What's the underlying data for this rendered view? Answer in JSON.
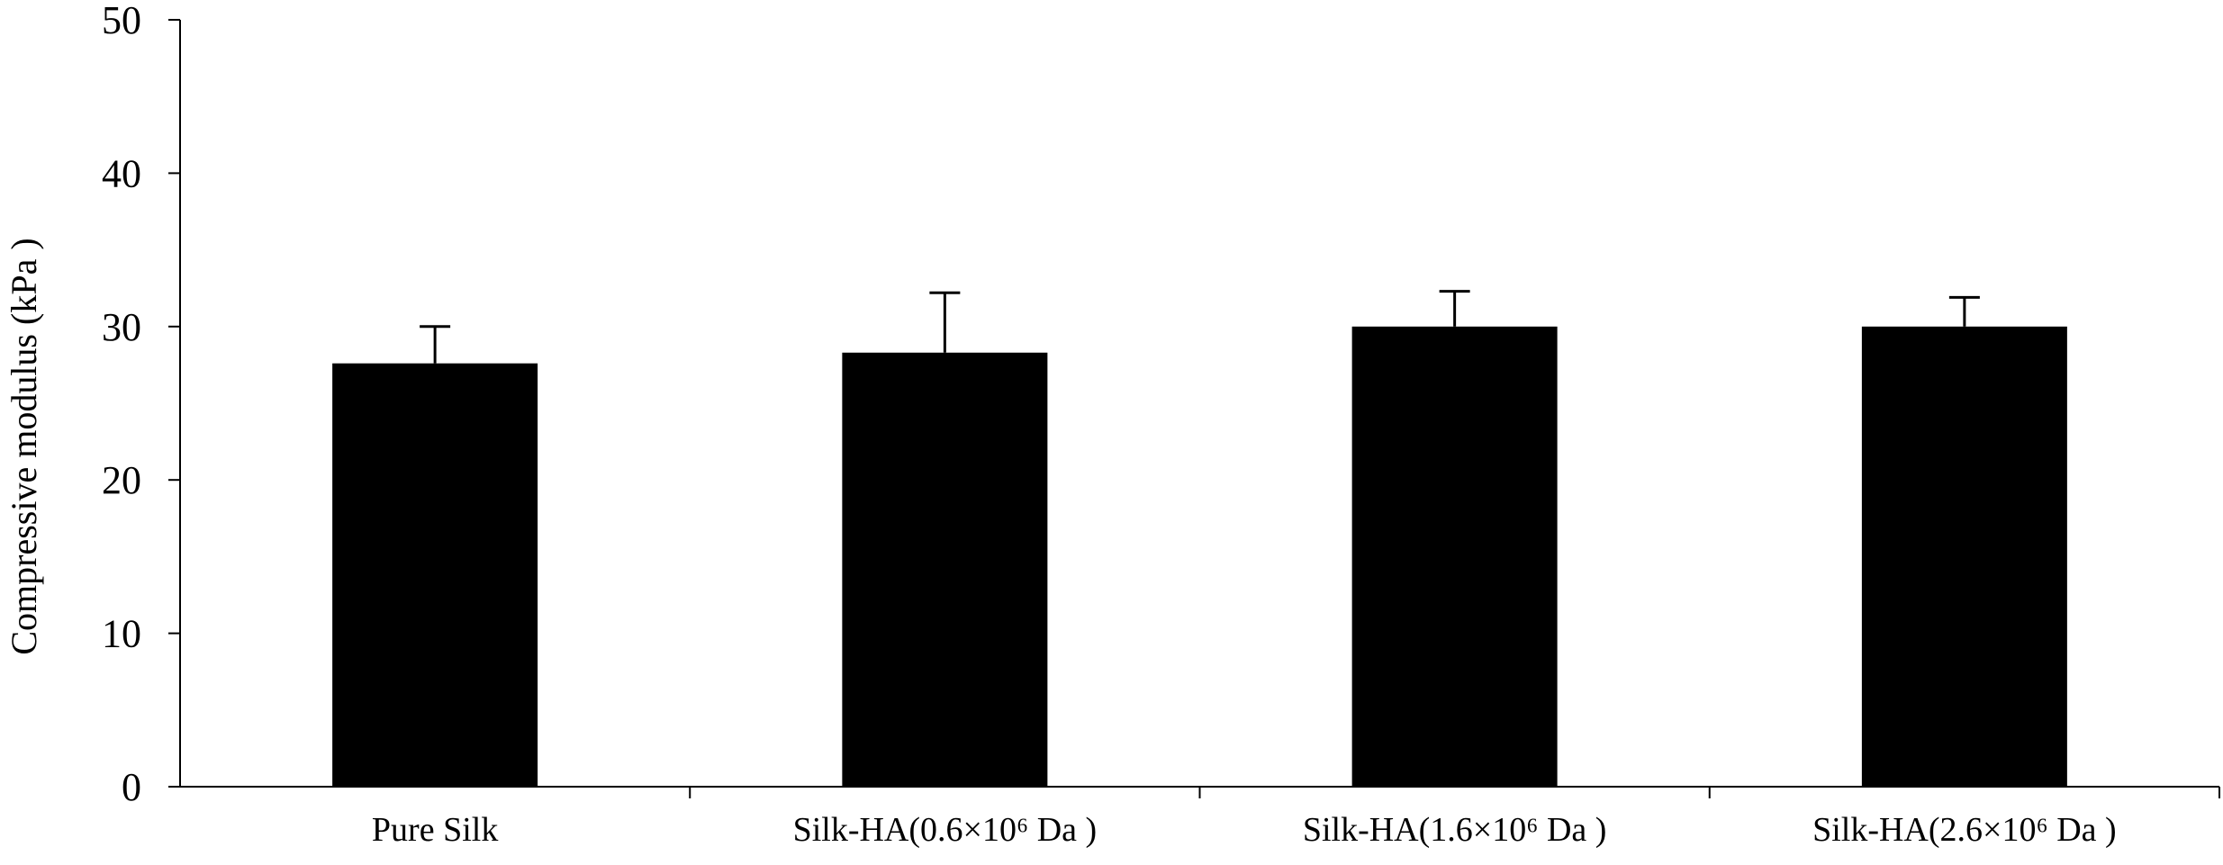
{
  "chart_data": {
    "type": "bar",
    "title": "",
    "xlabel": "",
    "ylabel": "Compressive modulus (kPa )",
    "ylim": [
      0,
      50
    ],
    "yticks": [
      "0",
      "10",
      "20",
      "30",
      "40",
      "50"
    ],
    "grid": false,
    "legend": "none",
    "categories": [
      "Pure Silk",
      "Silk-HA(0.6×10⁶ Da )",
      "Silk-HA(1.6×10⁶ Da )",
      "Silk-HA(2.6×10⁶ Da )"
    ],
    "series": [
      {
        "values": [
          27.6,
          28.3,
          30.0,
          30.0
        ],
        "error_plus": [
          2.4,
          3.9,
          2.3,
          1.9
        ]
      }
    ],
    "colors": {
      "bar": "#000000",
      "axis": "#000000",
      "background": "#ffffff"
    }
  }
}
